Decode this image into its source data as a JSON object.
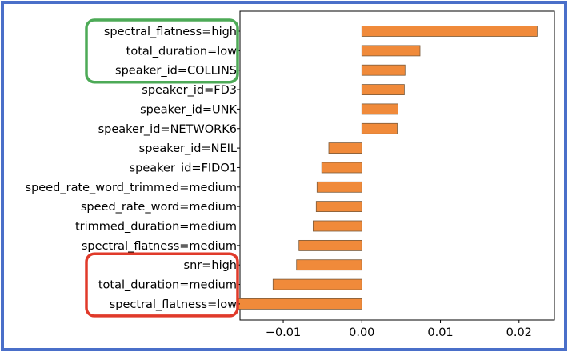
{
  "colors": {
    "border": "#4a6fc9",
    "bar_fill": "#f08a3a",
    "bar_stroke": "#7a5a3a",
    "green_box": "#4daa57",
    "red_box": "#e03a2a"
  },
  "chart_data": {
    "type": "bar",
    "orientation": "horizontal",
    "title": "",
    "xlabel": "",
    "ylabel": "",
    "xlim": [
      -0.0155,
      0.0245
    ],
    "xticks": [
      -0.01,
      0.0,
      0.01,
      0.02
    ],
    "xtick_labels": [
      "−0.01",
      "0.00",
      "0.01",
      "0.02"
    ],
    "grid": false,
    "categories": [
      "spectral_flatness=high",
      "total_duration=low",
      "speaker_id=COLLINS",
      "speaker_id=FD3",
      "speaker_id=UNK",
      "speaker_id=NETWORK6",
      "speaker_id=NEIL",
      "speaker_id=FIDO1",
      "speed_rate_word_trimmed=medium",
      "speed_rate_word=medium",
      "trimmed_duration=medium",
      "spectral_flatness=medium",
      "snr=high",
      "total_duration=medium",
      "spectral_flatness=low"
    ],
    "values": [
      0.0223,
      0.0074,
      0.0055,
      0.0054,
      0.0046,
      0.0045,
      -0.0042,
      -0.0051,
      -0.0057,
      -0.0058,
      -0.0062,
      -0.008,
      -0.0083,
      -0.0113,
      -0.0158
    ],
    "highlight_groups": [
      {
        "color": "green",
        "categories": [
          "spectral_flatness=high",
          "total_duration=low",
          "speaker_id=COLLINS"
        ]
      },
      {
        "color": "red",
        "categories": [
          "snr=high",
          "total_duration=medium",
          "spectral_flatness=low"
        ]
      }
    ]
  }
}
